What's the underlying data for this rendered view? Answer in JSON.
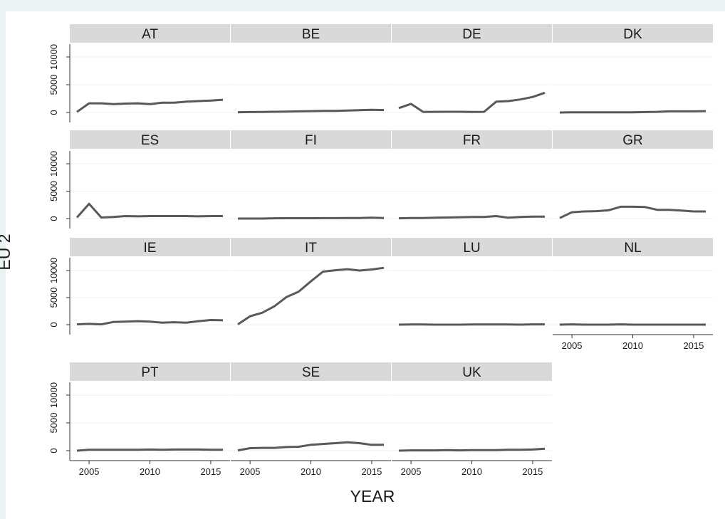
{
  "chart_data": {
    "type": "line",
    "layout": "facet-grid",
    "xlabel": "YEAR",
    "ylabel": "EU 2",
    "xlim": [
      2004,
      2016
    ],
    "ylim": [
      0,
      10000
    ],
    "x_ticks": [
      2005,
      2010,
      2015
    ],
    "y_ticks": [
      0,
      5000,
      10000
    ],
    "x": [
      2004,
      2005,
      2006,
      2007,
      2008,
      2009,
      2010,
      2011,
      2012,
      2013,
      2014,
      2015,
      2016
    ],
    "series_color": "#595959",
    "strip_color": "#d9d9d9",
    "grid": true,
    "panels": [
      {
        "name": "AT",
        "values": [
          100,
          1650,
          1650,
          1500,
          1600,
          1650,
          1500,
          1750,
          1750,
          1950,
          2050,
          2150,
          2300
        ]
      },
      {
        "name": "BE",
        "values": [
          50,
          80,
          100,
          130,
          150,
          200,
          250,
          290,
          300,
          350,
          420,
          480,
          440
        ]
      },
      {
        "name": "DE",
        "values": [
          800,
          1550,
          100,
          120,
          130,
          130,
          100,
          120,
          1950,
          2050,
          2350,
          2800,
          3550
        ]
      },
      {
        "name": "DK",
        "values": [
          0,
          20,
          30,
          30,
          30,
          30,
          40,
          80,
          120,
          200,
          200,
          200,
          250
        ]
      },
      {
        "name": "ES",
        "values": [
          200,
          2700,
          200,
          300,
          450,
          400,
          450,
          450,
          450,
          450,
          400,
          450,
          450
        ]
      },
      {
        "name": "FI",
        "values": [
          0,
          0,
          0,
          50,
          60,
          60,
          60,
          80,
          80,
          90,
          100,
          150,
          100
        ]
      },
      {
        "name": "FR",
        "values": [
          50,
          100,
          100,
          150,
          200,
          250,
          300,
          300,
          450,
          150,
          300,
          350,
          350
        ]
      },
      {
        "name": "GR",
        "values": [
          100,
          1150,
          1300,
          1350,
          1500,
          2150,
          2150,
          2100,
          1600,
          1600,
          1450,
          1300,
          1300
        ]
      },
      {
        "name": "IE",
        "values": [
          50,
          150,
          50,
          500,
          550,
          650,
          550,
          350,
          450,
          350,
          650,
          850,
          800
        ]
      },
      {
        "name": "IT",
        "values": [
          50,
          1550,
          2200,
          3400,
          5100,
          6100,
          8000,
          9800,
          10050,
          10250,
          10000,
          10200,
          10500
        ]
      },
      {
        "name": "LU",
        "values": [
          0,
          20,
          20,
          0,
          0,
          0,
          20,
          20,
          20,
          20,
          0,
          50,
          50
        ]
      },
      {
        "name": "NL",
        "values": [
          0,
          50,
          0,
          0,
          0,
          50,
          0,
          0,
          0,
          0,
          0,
          0,
          0
        ]
      },
      {
        "name": "PT",
        "values": [
          0,
          150,
          150,
          150,
          150,
          150,
          200,
          150,
          200,
          200,
          200,
          150,
          150
        ]
      },
      {
        "name": "SE",
        "values": [
          50,
          450,
          500,
          500,
          650,
          700,
          1050,
          1200,
          1350,
          1500,
          1350,
          1050,
          1050
        ]
      },
      {
        "name": "UK",
        "values": [
          0,
          50,
          50,
          50,
          100,
          50,
          100,
          100,
          100,
          150,
          150,
          200,
          350
        ]
      }
    ]
  }
}
